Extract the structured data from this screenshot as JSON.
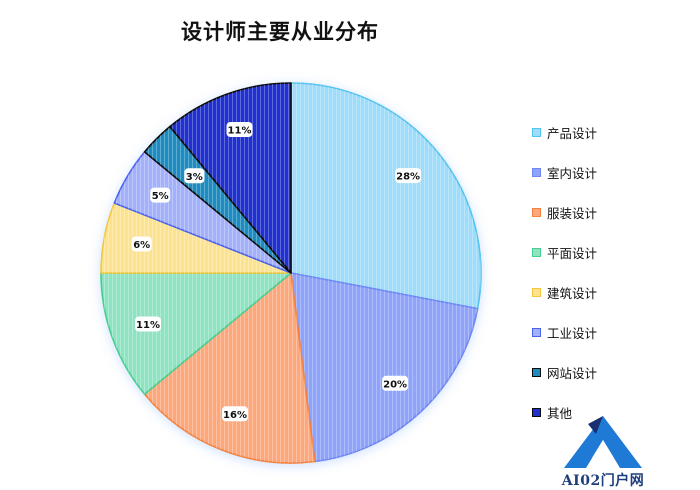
{
  "chart_data": {
    "type": "pie",
    "title": "设计师主要从业分布",
    "legend_position": "right",
    "slices": [
      {
        "label": "产品设计",
        "value": 28,
        "display": "28%",
        "color": "#9fdcfa"
      },
      {
        "label": "室内设计",
        "value": 20,
        "display": "20%",
        "color": "#8fa3fb"
      },
      {
        "label": "服装设计",
        "value": 16,
        "display": "16%",
        "color": "#fca87c"
      },
      {
        "label": "平面设计",
        "value": 11,
        "display": "11%",
        "color": "#8fe3c2"
      },
      {
        "label": "建筑设计",
        "value": 6,
        "display": "6%",
        "color": "#fde390"
      },
      {
        "label": "工业设计",
        "value": 5,
        "display": "5%",
        "color": "#a3b1fb"
      },
      {
        "label": "网站设计",
        "value": 3,
        "display": "3%",
        "color": "#1e8cc0"
      },
      {
        "label": "其他",
        "value": 11,
        "display": "11%",
        "color": "#2131d0"
      }
    ],
    "legend_order": [
      "产品设计",
      "室内设计",
      "服装设计",
      "平面设计",
      "建筑设计",
      "工业设计",
      "网站设计",
      "其他"
    ]
  },
  "watermark": {
    "text": "AI02门户网"
  },
  "colors": {
    "edge_产品设计": "#52c4f2",
    "edge_室内设计": "#6f86f5",
    "edge_服装设计": "#f5823f",
    "edge_平面设计": "#44cf8f",
    "edge_建筑设计": "#f5c83b",
    "edge_工业设计": "#4a62f0",
    "edge_网站设计": "#0a0a0a",
    "edge_其他": "#0a0a0a",
    "logo_blue": "#1f7ad6",
    "logo_dark": "#1a2f6f"
  }
}
